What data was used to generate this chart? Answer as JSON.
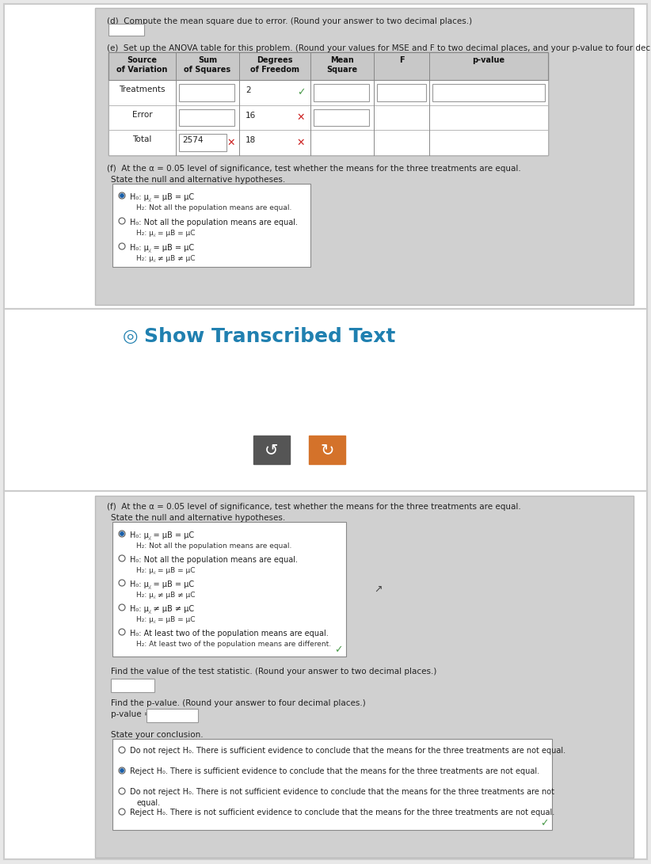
{
  "bg_outer": "#e8e8e8",
  "bg_white": "#ffffff",
  "bg_card": "#cccccc",
  "bg_panel_inner": "#d0d0d0",
  "bg_table_header": "#b0b0b0",
  "title_color": "#2080b0",
  "text_color": "#222222",
  "orange_btn": "#d4722a",
  "dark_btn": "#555555",
  "radio_fill": "#1a5fa8",
  "check_green": "#4a9a4a",
  "x_red": "#cc2222",
  "section_d": "(d)  Compute the mean square due to error. (Round your answer to two decimal places.)",
  "section_e": "(e)  Set up the ANOVA table for this problem. (Round your values for MSE and F to two decimal places, and your p-value to four decimal p",
  "section_f": "(f)  At the α = 0.05 level of significance, test whether the means for the three treatments are equal.",
  "state_hyp": "State the null and alternative hypotheses.",
  "find_stat": "Find the value of the test statistic. (Round your answer to two decimal places.)",
  "find_pval": "Find the p-value. (Round your answer to four decimal places.)",
  "pval_prefix": "p-value =",
  "concl_label": "State your conclusion.",
  "show_transcribed": "Show Transcribed Text",
  "table_headers": [
    "Source\nof Variation",
    "Sum\nof Squares",
    "Degrees\nof Freedom",
    "Mean\nSquare",
    "F",
    "p-value"
  ],
  "hyp_top": [
    {
      "h0": "H₀: μ⁁ = μB = μC",
      "ha": "H₂: Not all the population means are equal.",
      "sel": true
    },
    {
      "h0": "H₀: Not all the population means are equal.",
      "ha": "H₂: μ⁁ = μB = μC",
      "sel": false
    },
    {
      "h0": "H₀: μ⁁ = μB = μC",
      "ha": "H₂: μ⁁ ≠ μB ≠ μC",
      "sel": false
    }
  ],
  "hyp_bot": [
    {
      "h0": "H₀: μ⁁ = μB = μC",
      "ha": "H₂: Not all the population means are equal.",
      "sel": true
    },
    {
      "h0": "H₀: Not all the population means are equal.",
      "ha": "H₂: μ⁁ = μB = μC",
      "sel": false
    },
    {
      "h0": "H₀: μ⁁ = μB = μC",
      "ha": "H₂: μ⁁ ≠ μB ≠ μC",
      "sel": false
    },
    {
      "h0": "H₀: μ⁁ ≠ μB ≠ μC",
      "ha": "H₂: μ⁁ = μB = μC",
      "sel": false
    },
    {
      "h0": "H₀: At least two of the population means are equal.",
      "ha": "H₂: At least two of the population means are different.",
      "sel": false
    }
  ],
  "concl_opts": [
    {
      "txt": "Do not reject H₀. There is sufficient evidence to conclude that the means for the three treatments are not equal.",
      "sel": false
    },
    {
      "txt": "Reject H₀. There is sufficient evidence to conclude that the means for the three treatments are not equal.",
      "sel": true
    },
    {
      "txt": "Do not reject H₀. There is not sufficient evidence to conclude that the means for the three treatments are not\nequal.",
      "sel": false
    },
    {
      "txt": "Reject H₀. There is not sufficient evidence to conclude that the means for the three treatments are not equal.",
      "sel": false
    }
  ]
}
